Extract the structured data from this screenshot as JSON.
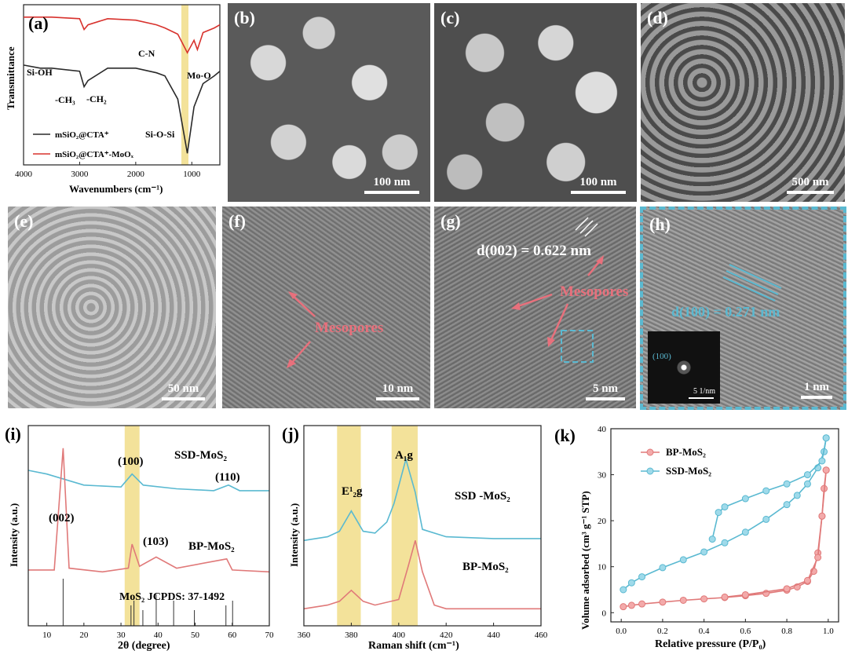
{
  "panel_a": {
    "tag": "(a)",
    "ylabel": "Transmittance",
    "xlabel": "Wavenumbers (cm⁻¹)",
    "xticks": [
      "4000",
      "3000",
      "2000",
      "1000"
    ],
    "annotations": {
      "si_oh": "Si-OH",
      "ch3": "-CH₃",
      "ch2": "-CH₂",
      "cn": "C-N",
      "moo": "Mo-O",
      "siosi": "Si-O-Si"
    },
    "legend": [
      "mSiO₂@CTA⁺",
      "mSiO₂@CTA⁺-MoOₓ"
    ],
    "colors": {
      "black": "#2a2a2a",
      "red": "#d8322d",
      "highlight": "#f3e29a"
    }
  },
  "panel_b": {
    "tag": "(b)",
    "scale": "100 nm"
  },
  "panel_c": {
    "tag": "(c)",
    "scale": "100 nm"
  },
  "panel_d": {
    "tag": "(d)",
    "scale": "500 nm"
  },
  "panel_e": {
    "tag": "(e)",
    "scale": "50 nm"
  },
  "panel_f": {
    "tag": "(f)",
    "scale": "10 nm",
    "label": "Mesopores"
  },
  "panel_g": {
    "tag": "(g)",
    "scale": "5 nm",
    "label": "Mesopores",
    "dspacing": "d(002) = 0.622 nm"
  },
  "panel_h": {
    "tag": "(h)",
    "scale": "1 nm",
    "dspacing": "d(100) = 0.271 nm",
    "inset_label": "(100)",
    "inset_scale": "5 1/nm"
  },
  "panel_i": {
    "tag": "(i)",
    "ylabel": "Intensity (a.u.)",
    "xlabel": "2θ (degree)",
    "xticks": [
      "10",
      "20",
      "30",
      "40",
      "50",
      "60",
      "70"
    ],
    "series_labels": [
      "SSD-MoS₂",
      "BP-MoS₂"
    ],
    "peak_labels": [
      "(002)",
      "(100)",
      "(103)",
      "(110)"
    ],
    "reference": "MoS₂ JCPDS: 37-1492",
    "colors": {
      "blue": "#5ab9d1",
      "red": "#e07979"
    }
  },
  "panel_j": {
    "tag": "(j)",
    "ylabel": "Intensity (a.u.)",
    "xlabel": "Raman shift (cm⁻¹)",
    "xticks": [
      "360",
      "380",
      "400",
      "420",
      "440",
      "460"
    ],
    "series_labels": [
      "SSD -MoS₂",
      "BP-MoS₂"
    ],
    "peak_labels": [
      "E¹₂g",
      "A₁g"
    ]
  },
  "panel_k": {
    "tag": "(k)",
    "ylabel": "Volume adsorbed (cm³ g⁻¹ STP)",
    "xlabel": "Relative pressure (P/P₀)",
    "xticks": [
      "0.0",
      "0.2",
      "0.4",
      "0.6",
      "0.8",
      "1.0"
    ],
    "yticks": [
      "0",
      "10",
      "20",
      "30",
      "40"
    ],
    "legend": [
      "BP-MoS₂",
      "SSD-MoS₂"
    ]
  },
  "chart_data": [
    {
      "type": "line",
      "panel": "(a)",
      "xlabel": "Wavenumbers (cm⁻¹)",
      "ylabel": "Transmittance",
      "xlim": [
        4000,
        500
      ],
      "series": [
        {
          "name": "mSiO₂@CTA⁺",
          "x": [
            4000,
            3700,
            3500,
            3000,
            2920,
            2850,
            2500,
            2000,
            1630,
            1480,
            1250,
            1080,
            960,
            800,
            600,
            500
          ],
          "y": [
            0.62,
            0.6,
            0.6,
            0.58,
            0.48,
            0.52,
            0.6,
            0.6,
            0.57,
            0.55,
            0.4,
            0.05,
            0.35,
            0.5,
            0.55,
            0.58
          ]
        },
        {
          "name": "mSiO₂@CTA⁺-MoOₓ",
          "x": [
            4000,
            3500,
            3000,
            2920,
            2850,
            2500,
            2000,
            1630,
            1480,
            1250,
            1080,
            960,
            900,
            800,
            600,
            500
          ],
          "y": [
            0.93,
            0.93,
            0.92,
            0.85,
            0.88,
            0.92,
            0.91,
            0.88,
            0.86,
            0.82,
            0.7,
            0.78,
            0.72,
            0.83,
            0.86,
            0.88
          ]
        }
      ]
    },
    {
      "type": "line",
      "panel": "(i)",
      "xlabel": "2θ (degree)",
      "ylabel": "Intensity (a.u.)",
      "xlim": [
        5,
        70
      ],
      "series": [
        {
          "name": "SSD-MoS₂",
          "x": [
            5,
            10,
            20,
            30,
            33,
            36,
            45,
            55,
            59,
            62,
            70
          ],
          "y": [
            0.8,
            0.78,
            0.72,
            0.71,
            0.78,
            0.72,
            0.7,
            0.69,
            0.72,
            0.69,
            0.69
          ]
        },
        {
          "name": "BP-MoS₂",
          "x": [
            5,
            12,
            14.4,
            16,
            25,
            32,
            33,
            35,
            39.5,
            45,
            58.5,
            60,
            70
          ],
          "y": [
            0.26,
            0.26,
            0.92,
            0.27,
            0.25,
            0.27,
            0.4,
            0.28,
            0.33,
            0.27,
            0.32,
            0.26,
            0.25
          ]
        }
      ],
      "reference_peaks": [
        14.4,
        32.7,
        33.5,
        35.9,
        39.5,
        44.2,
        49.8,
        58.3,
        60.1
      ]
    },
    {
      "type": "line",
      "panel": "(j)",
      "xlabel": "Raman shift (cm⁻¹)",
      "ylabel": "Intensity (a.u.)",
      "xlim": [
        360,
        460
      ],
      "series": [
        {
          "name": "SSD -MoS₂",
          "x": [
            360,
            370,
            375,
            380,
            385,
            390,
            395,
            398,
            403,
            407,
            410,
            420,
            440,
            460
          ],
          "y": [
            0.42,
            0.44,
            0.47,
            0.58,
            0.47,
            0.46,
            0.52,
            0.62,
            0.86,
            0.68,
            0.48,
            0.44,
            0.43,
            0.43
          ]
        },
        {
          "name": "BP-MoS₂",
          "x": [
            360,
            370,
            375,
            380,
            385,
            390,
            400,
            404,
            407,
            410,
            415,
            420,
            440,
            460
          ],
          "y": [
            0.05,
            0.07,
            0.09,
            0.15,
            0.09,
            0.07,
            0.1,
            0.28,
            0.42,
            0.25,
            0.07,
            0.05,
            0.05,
            0.05
          ]
        }
      ]
    },
    {
      "type": "scatter",
      "panel": "(k)",
      "xlabel": "Relative pressure (P/P₀)",
      "ylabel": "Volume adsorbed (cm³ g⁻¹ STP)",
      "xlim": [
        0,
        1
      ],
      "ylim": [
        -2,
        40
      ],
      "series": [
        {
          "name": "BP-MoS₂",
          "adsorption": {
            "x": [
              0.01,
              0.05,
              0.1,
              0.2,
              0.3,
              0.4,
              0.5,
              0.6,
              0.7,
              0.8,
              0.85,
              0.9,
              0.93,
              0.95,
              0.97,
              0.98,
              0.99
            ],
            "y": [
              1.3,
              1.6,
              1.9,
              2.3,
              2.7,
              3.0,
              3.3,
              3.7,
              4.2,
              4.9,
              5.6,
              6.8,
              9.0,
              13,
              21,
              27,
              31
            ]
          },
          "desorption": {
            "x": [
              0.99,
              0.97,
              0.95,
              0.9,
              0.8,
              0.6,
              0.5
            ],
            "y": [
              31,
              21,
              12,
              7.0,
              5.2,
              3.9,
              3.4
            ]
          }
        },
        {
          "name": "SSD-MoS₂",
          "adsorption": {
            "x": [
              0.01,
              0.05,
              0.1,
              0.2,
              0.3,
              0.4,
              0.5,
              0.6,
              0.7,
              0.8,
              0.85,
              0.9,
              0.95,
              0.98,
              0.99
            ],
            "y": [
              5,
              6.5,
              7.8,
              9.8,
              11.5,
              13.2,
              15.2,
              17.5,
              20.3,
              23.5,
              25.5,
              28,
              31.5,
              35,
              38
            ]
          },
          "desorption": {
            "x": [
              0.99,
              0.97,
              0.9,
              0.8,
              0.7,
              0.6,
              0.5,
              0.47,
              0.44
            ],
            "y": [
              38,
              33,
              30,
              28,
              26.5,
              24.8,
              23,
              21.8,
              16
            ]
          }
        }
      ]
    }
  ]
}
